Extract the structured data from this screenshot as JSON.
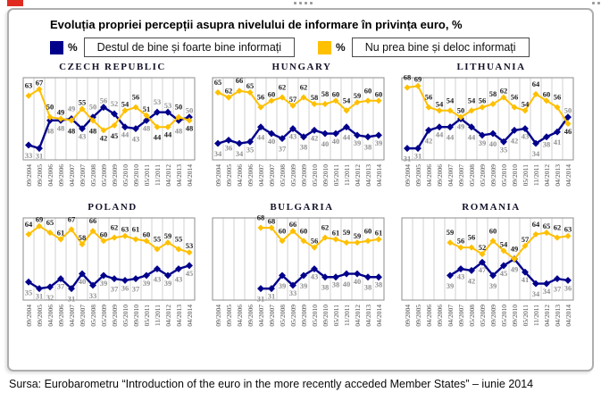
{
  "title": "Evoluția propriei percepții asupra nivelului de informare în privința euro, %",
  "legend": [
    {
      "color": "#00008B",
      "pct": "%",
      "label": "Destul de bine și foarte bine informați"
    },
    {
      "color": "#FFC000",
      "pct": "%",
      "label": "Nu prea bine și deloc informați"
    }
  ],
  "x_labels": [
    "09/2004",
    "09/2005",
    "04/2006",
    "09/2006",
    "04/2007",
    "09/2007",
    "05/2008",
    "05/2009",
    "09/2009",
    "05/2010",
    "09/2010",
    "05/2011",
    "11/2011",
    "04/2012",
    "04/2013",
    "04/2014"
  ],
  "chart_data": [
    {
      "type": "line",
      "title": "CZECH REPUBLIC",
      "start_index": 0,
      "ylim": [
        24,
        74
      ],
      "categories": [
        "09/2004",
        "09/2005",
        "04/2006",
        "09/2006",
        "04/2007",
        "09/2007",
        "05/2008",
        "05/2009",
        "09/2009",
        "05/2010",
        "09/2010",
        "05/2011",
        "11/2011",
        "04/2012",
        "04/2013",
        "04/2014"
      ],
      "series": [
        {
          "name": "Destul de bine și foarte bine informați",
          "color": "#00008B",
          "values": [
            33,
            31,
            48,
            48,
            49,
            43,
            50,
            56,
            52,
            44,
            43,
            48,
            53,
            53,
            48,
            50
          ]
        },
        {
          "name": "Nu prea bine și deloc informați",
          "color": "#FFC000",
          "values": [
            63,
            67,
            50,
            49,
            48,
            55,
            48,
            42,
            45,
            54,
            56,
            51,
            44,
            44,
            50,
            48
          ]
        }
      ]
    },
    {
      "type": "line",
      "title": "HUNGARY",
      "start_index": 0,
      "ylim": [
        24,
        74
      ],
      "categories": [
        "09/2004",
        "09/2005",
        "04/2006",
        "09/2006",
        "04/2007",
        "09/2007",
        "05/2008",
        "05/2009",
        "09/2009",
        "05/2010",
        "09/2010",
        "05/2011",
        "11/2011",
        "04/2012",
        "04/2013",
        "04/2014"
      ],
      "series": [
        {
          "name": "Destul de bine și foarte bine informați",
          "color": "#00008B",
          "values": [
            34,
            36,
            34,
            35,
            44,
            40,
            37,
            43,
            38,
            42,
            40,
            40,
            44,
            39,
            38,
            39
          ]
        },
        {
          "name": "Nu prea bine și deloc informați",
          "color": "#FFC000",
          "values": [
            65,
            62,
            66,
            65,
            56,
            60,
            62,
            57,
            62,
            58,
            58,
            60,
            54,
            59,
            60,
            60
          ]
        }
      ]
    },
    {
      "type": "line",
      "title": "LITHUANIA",
      "start_index": 0,
      "ylim": [
        24,
        74
      ],
      "categories": [
        "09/2004",
        "09/2005",
        "04/2006",
        "09/2006",
        "04/2007",
        "09/2007",
        "05/2008",
        "05/2009",
        "09/2009",
        "05/2010",
        "09/2010",
        "05/2011",
        "11/2011",
        "04/2012",
        "04/2013",
        "04/2014"
      ],
      "series": [
        {
          "name": "Destul de bine și foarte bine informați",
          "color": "#00008B",
          "values": [
            31,
            31,
            42,
            44,
            44,
            49,
            44,
            39,
            40,
            35,
            42,
            43,
            34,
            38,
            41,
            50
          ]
        },
        {
          "name": "Nu prea bine și deloc informați",
          "color": "#FFC000",
          "values": [
            68,
            69,
            56,
            54,
            54,
            50,
            54,
            56,
            58,
            62,
            56,
            54,
            64,
            60,
            56,
            46
          ]
        }
      ]
    },
    {
      "type": "line",
      "title": "POLAND",
      "start_index": 0,
      "ylim": [
        24,
        74
      ],
      "categories": [
        "09/2004",
        "09/2005",
        "04/2006",
        "09/2006",
        "04/2007",
        "09/2007",
        "05/2008",
        "05/2009",
        "09/2009",
        "05/2010",
        "09/2010",
        "05/2011",
        "11/2011",
        "04/2012",
        "04/2013",
        "04/2014"
      ],
      "series": [
        {
          "name": "Destul de bine și foarte bine informați",
          "color": "#00008B",
          "values": [
            35,
            31,
            32,
            37,
            31,
            40,
            33,
            39,
            37,
            36,
            37,
            39,
            43,
            39,
            43,
            45
          ]
        },
        {
          "name": "Nu prea bine și deloc informați",
          "color": "#FFC000",
          "values": [
            64,
            69,
            65,
            61,
            67,
            58,
            66,
            60,
            62,
            63,
            61,
            60,
            55,
            59,
            55,
            53
          ]
        }
      ]
    },
    {
      "type": "line",
      "title": "BULGARIA",
      "start_index": 4,
      "ylim": [
        24,
        74
      ],
      "categories": [
        "09/2004",
        "09/2005",
        "04/2006",
        "09/2006",
        "04/2007",
        "09/2007",
        "05/2008",
        "05/2009",
        "09/2009",
        "05/2010",
        "09/2010",
        "05/2011",
        "11/2011",
        "04/2012",
        "04/2013",
        "04/2014"
      ],
      "series": [
        {
          "name": "Destul de bine și foarte bine informați",
          "color": "#00008B",
          "values": [
            31,
            31,
            39,
            33,
            39,
            43,
            38,
            38,
            40,
            40,
            38,
            38
          ]
        },
        {
          "name": "Nu prea bine și deloc informați",
          "color": "#FFC000",
          "values": [
            68,
            68,
            60,
            66,
            60,
            56,
            62,
            61,
            59,
            59,
            60,
            61
          ]
        }
      ]
    },
    {
      "type": "line",
      "title": "ROMANIA",
      "start_index": 4,
      "ylim": [
        24,
        74
      ],
      "categories": [
        "09/2004",
        "09/2005",
        "04/2006",
        "09/2006",
        "04/2007",
        "09/2007",
        "05/2008",
        "05/2009",
        "09/2009",
        "05/2010",
        "09/2010",
        "05/2011",
        "11/2011",
        "04/2012",
        "04/2013",
        "04/2014"
      ],
      "series": [
        {
          "name": "Destul de bine și foarte bine informați",
          "color": "#00008B",
          "values": [
            39,
            43,
            42,
            47,
            39,
            45,
            49,
            41,
            34,
            34,
            37,
            36
          ]
        },
        {
          "name": "Nu prea bine și deloc informați",
          "color": "#FFC000",
          "values": [
            59,
            56,
            56,
            52,
            60,
            54,
            49,
            57,
            64,
            65,
            62,
            63
          ]
        }
      ]
    }
  ],
  "source": "Sursa: Eurobarometru “Introduction of the euro in the more recently acceded Member States” – iunie 2014"
}
